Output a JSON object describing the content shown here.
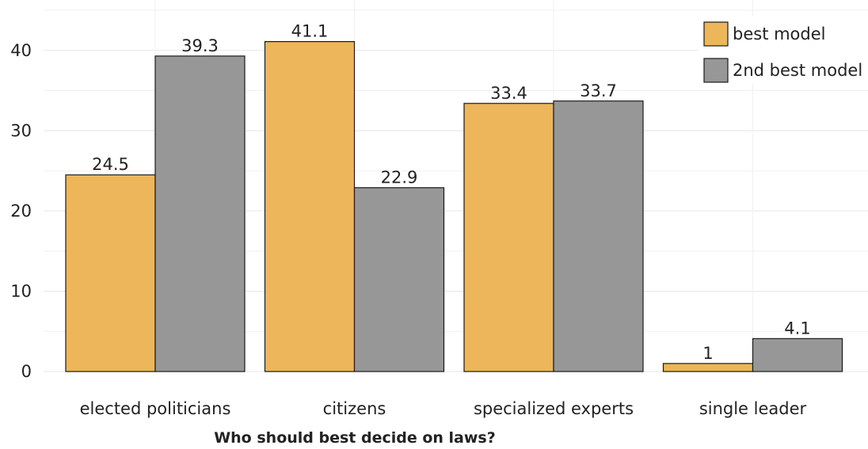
{
  "chart_data": {
    "type": "bar",
    "title": "",
    "xlabel": "Who should best decide on laws?",
    "ylabel": "",
    "categories": [
      "elected politicians",
      "citizens",
      "specialized experts",
      "single leader"
    ],
    "series": [
      {
        "name": "best model",
        "values": [
          24.5,
          41.1,
          33.4,
          1
        ],
        "labels": [
          "24.5",
          "41.1",
          "33.4",
          "1"
        ],
        "color": "#EDB65A"
      },
      {
        "name": "2nd best model",
        "values": [
          39.3,
          22.9,
          33.7,
          4.1
        ],
        "labels": [
          "39.3",
          "22.9",
          "33.7",
          "4.1"
        ],
        "color": "#979797"
      }
    ],
    "ylim": [
      0,
      45
    ],
    "yticks": [
      0,
      10,
      20,
      30,
      40
    ],
    "grid": true,
    "legend_position": "top-right"
  }
}
